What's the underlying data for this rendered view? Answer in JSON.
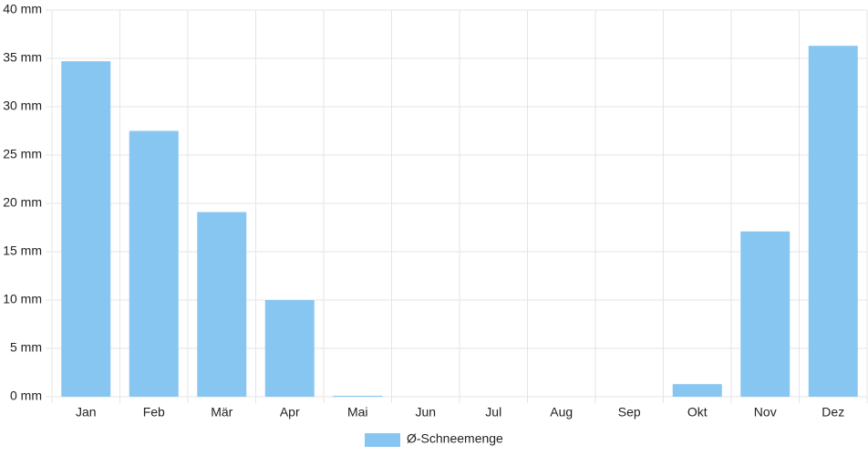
{
  "chart_data": {
    "type": "bar",
    "categories": [
      "Jan",
      "Feb",
      "Mär",
      "Apr",
      "Mai",
      "Jun",
      "Jul",
      "Aug",
      "Sep",
      "Okt",
      "Nov",
      "Dez"
    ],
    "series": [
      {
        "name": "Ø-Schneemenge",
        "color": "#88c6f2",
        "values": [
          34.7,
          27.5,
          19.1,
          10.0,
          0.1,
          0,
          0,
          0,
          0,
          1.3,
          17.1,
          36.3
        ]
      }
    ],
    "ylim": [
      0,
      40
    ],
    "yticks": [
      {
        "value": 0,
        "label": "0 mm"
      },
      {
        "value": 5,
        "label": "5 mm"
      },
      {
        "value": 10,
        "label": "10 mm"
      },
      {
        "value": 15,
        "label": "15 mm"
      },
      {
        "value": 20,
        "label": "20 mm"
      },
      {
        "value": 25,
        "label": "25 mm"
      },
      {
        "value": 30,
        "label": "30 mm"
      },
      {
        "value": 35,
        "label": "35 mm"
      },
      {
        "value": 40,
        "label": "40 mm"
      }
    ],
    "grid": true,
    "legend": "bottom"
  }
}
